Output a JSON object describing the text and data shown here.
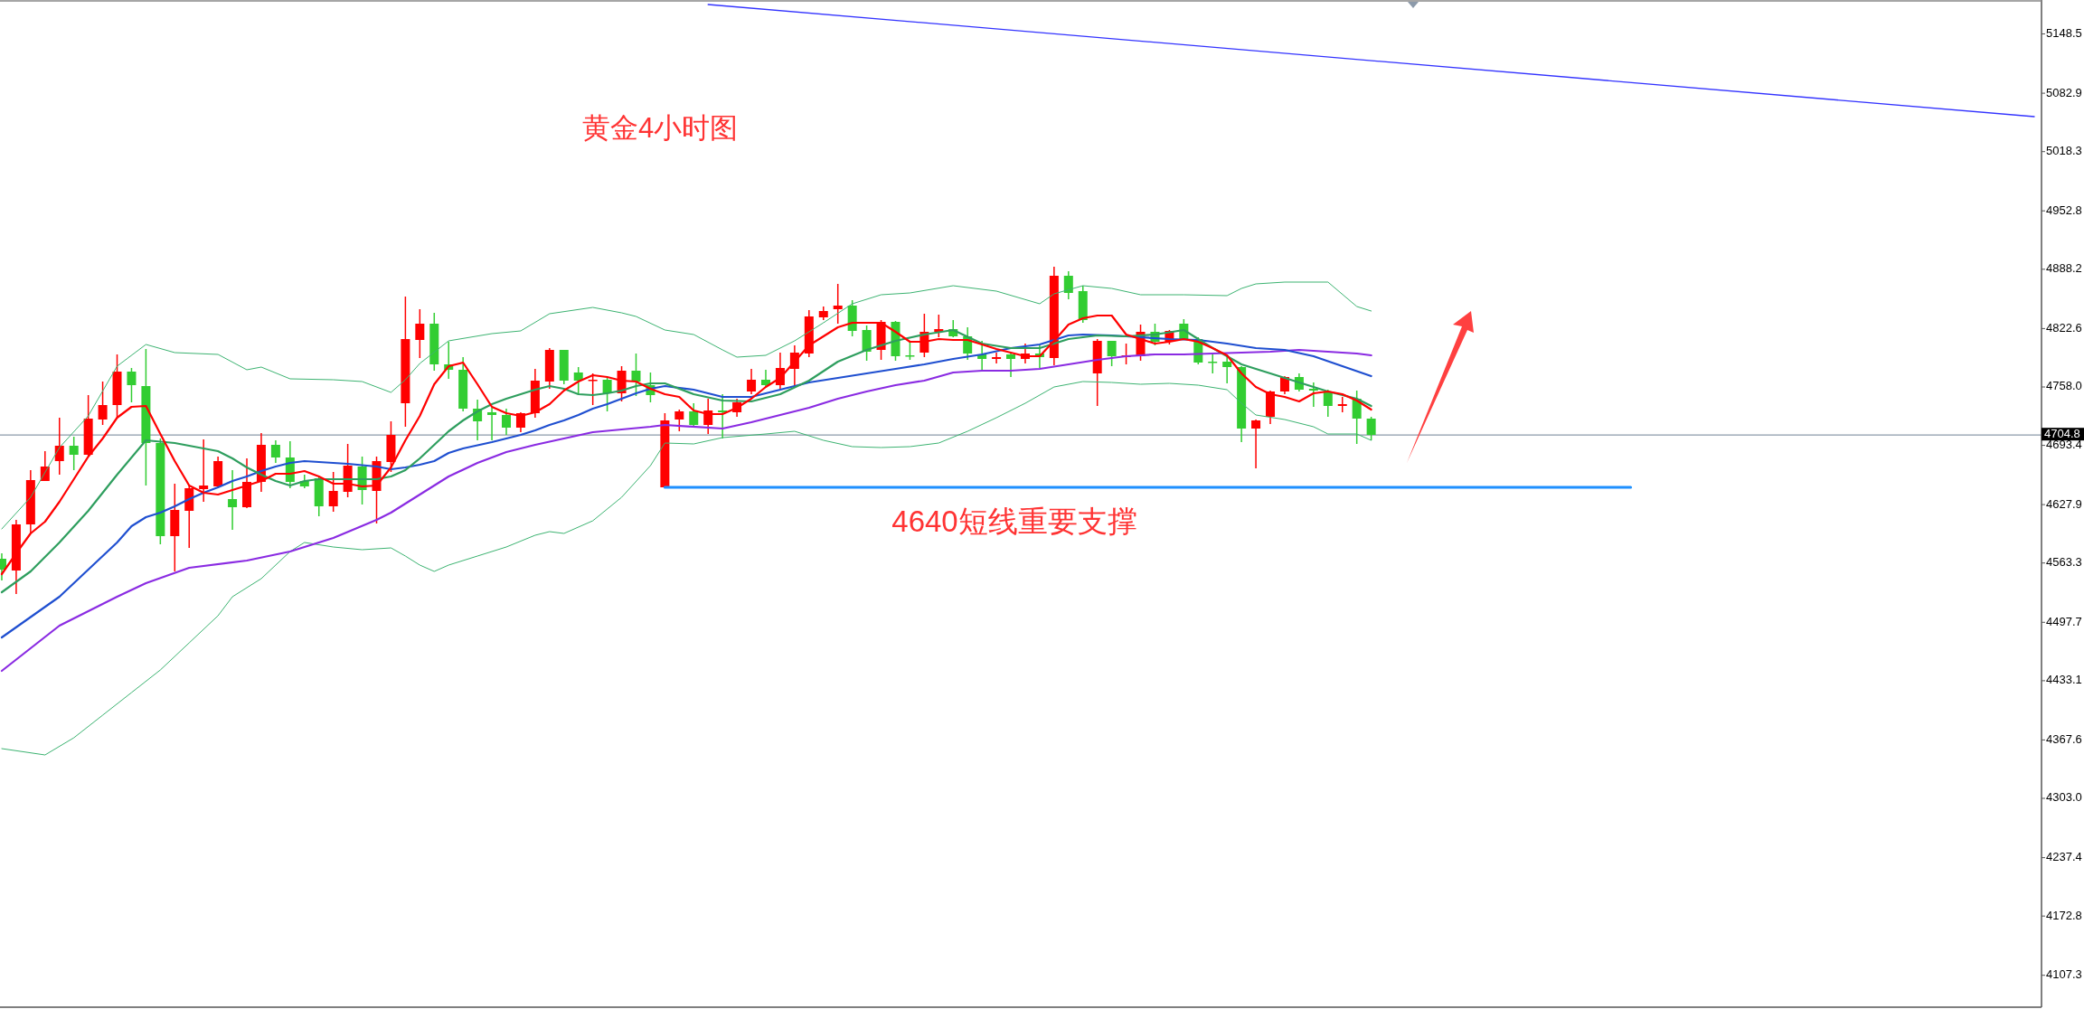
{
  "chart_data": {
    "type": "candlestick",
    "title": "黄金4小时图",
    "annotations": [
      "4640短线重要支撑"
    ],
    "categories": [
      null,
      null,
      null,
      null,
      null,
      null,
      null,
      null,
      null,
      null,
      null,
      null,
      null,
      null,
      null,
      null,
      null,
      null,
      null,
      null,
      null,
      null,
      null,
      null,
      null,
      null,
      null,
      null,
      null,
      null,
      null,
      null,
      null,
      null,
      null,
      null,
      null,
      null,
      null,
      null,
      null,
      null,
      null,
      null,
      null,
      null,
      null,
      null,
      null,
      null,
      null,
      null,
      null,
      null,
      null,
      null,
      null,
      null,
      null,
      null,
      null,
      null,
      null,
      null,
      null,
      null,
      null,
      null,
      null,
      null,
      null,
      null,
      null,
      null,
      null,
      null,
      null,
      null,
      null,
      null,
      null,
      null,
      null,
      null,
      null,
      null,
      null,
      null,
      null,
      null,
      null,
      null,
      null,
      null,
      null,
      null,
      null,
      null,
      null,
      null,
      null,
      null,
      null,
      null,
      null,
      null,
      null,
      null,
      null,
      null,
      null,
      null,
      null,
      null,
      null,
      null,
      null,
      null,
      null,
      null,
      null,
      null,
      null,
      null,
      null,
      null,
      null,
      null,
      null,
      null,
      null,
      null,
      null,
      null,
      null,
      null,
      null,
      null,
      null,
      null,
      null,
      null
    ],
    "ohlc": [
      [
        4568,
        4574,
        4544,
        4556
      ],
      [
        4555,
        4611,
        4529,
        4606
      ],
      [
        4606,
        4666,
        4596,
        4655
      ],
      [
        4654,
        4687,
        4654,
        4670
      ],
      [
        4676,
        4724,
        4661,
        4693
      ],
      [
        4693,
        4703,
        4666,
        4683
      ],
      [
        4683,
        4749,
        4682,
        4723
      ],
      [
        4722,
        4764,
        4716,
        4738
      ],
      [
        4738,
        4794,
        4724,
        4775
      ],
      [
        4775,
        4779,
        4741,
        4760
      ],
      [
        4759,
        4800,
        4649,
        4696
      ],
      [
        4696,
        4701,
        4584,
        4593
      ],
      [
        4593,
        4651,
        4554,
        4622
      ],
      [
        4621,
        4650,
        4580,
        4646
      ],
      [
        4645,
        4700,
        4631,
        4649
      ],
      [
        4648,
        4681,
        4646,
        4676
      ],
      [
        4634,
        4666,
        4600,
        4625
      ],
      [
        4625,
        4679,
        4624,
        4653
      ],
      [
        4653,
        4707,
        4642,
        4694
      ],
      [
        4694,
        4699,
        4674,
        4680
      ],
      [
        4680,
        4698,
        4646,
        4653
      ],
      [
        4654,
        4661,
        4646,
        4648
      ],
      [
        4657,
        4659,
        4615,
        4626
      ],
      [
        4626,
        4664,
        4620,
        4643
      ],
      [
        4642,
        4695,
        4636,
        4671
      ],
      [
        4670,
        4681,
        4628,
        4644
      ],
      [
        4643,
        4681,
        4607,
        4676
      ],
      [
        4675,
        4720,
        4664,
        4705
      ],
      [
        4740,
        4858,
        4714,
        4811
      ],
      [
        4810,
        4844,
        4790,
        4828
      ],
      [
        4828,
        4840,
        4776,
        4783
      ],
      [
        4783,
        4808,
        4767,
        4777
      ],
      [
        4777,
        4791,
        4731,
        4734
      ],
      [
        4734,
        4744,
        4699,
        4720
      ],
      [
        4730,
        4735,
        4699,
        4727
      ],
      [
        4727,
        4734,
        4705,
        4713
      ],
      [
        4713,
        4730,
        4708,
        4729
      ],
      [
        4729,
        4778,
        4724,
        4765
      ],
      [
        4764,
        4801,
        4756,
        4799
      ],
      [
        4799,
        4799,
        4761,
        4765
      ],
      [
        4774,
        4780,
        4749,
        4765
      ],
      [
        4765,
        4773,
        4738,
        4766
      ],
      [
        4766,
        4768,
        4731,
        4751
      ],
      [
        4751,
        4781,
        4742,
        4776
      ],
      [
        4776,
        4795,
        4748,
        4764
      ],
      [
        4760,
        4774,
        4741,
        4749
      ],
      [
        4647,
        4729,
        4647,
        4721
      ],
      [
        4722,
        4733,
        4709,
        4731
      ],
      [
        4731,
        4740,
        4714,
        4716
      ],
      [
        4716,
        4745,
        4706,
        4732
      ],
      [
        4732,
        4750,
        4701,
        4730
      ],
      [
        4730,
        4745,
        4725,
        4741
      ],
      [
        4753,
        4778,
        4750,
        4766
      ],
      [
        4766,
        4777,
        4758,
        4760
      ],
      [
        4760,
        4796,
        4756,
        4779
      ],
      [
        4778,
        4804,
        4758,
        4796
      ],
      [
        4795,
        4843,
        4791,
        4836
      ],
      [
        4835,
        4847,
        4832,
        4842
      ],
      [
        4844,
        4872,
        4828,
        4848
      ],
      [
        4848,
        4854,
        4814,
        4820
      ],
      [
        4821,
        4826,
        4787,
        4797
      ],
      [
        4799,
        4832,
        4788,
        4830
      ],
      [
        4830,
        4831,
        4787,
        4792
      ],
      [
        4793,
        4808,
        4788,
        4792
      ],
      [
        4796,
        4839,
        4791,
        4819
      ],
      [
        4819,
        4838,
        4813,
        4822
      ],
      [
        4822,
        4832,
        4813,
        4814
      ],
      [
        4814,
        4824,
        4788,
        4795
      ],
      [
        4794,
        4809,
        4776,
        4789
      ],
      [
        4789,
        4796,
        4784,
        4791
      ],
      [
        4794,
        4796,
        4769,
        4789
      ],
      [
        4789,
        4806,
        4784,
        4795
      ],
      [
        4795,
        4804,
        4779,
        4791
      ],
      [
        4790,
        4891,
        4782,
        4881
      ],
      [
        4881,
        4886,
        4855,
        4862
      ],
      [
        4864,
        4870,
        4829,
        4832
      ],
      [
        4773,
        4811,
        4737,
        4809
      ],
      [
        4809,
        4809,
        4781,
        4792
      ],
      [
        4791,
        4806,
        4783,
        4793
      ],
      [
        4792,
        4827,
        4787,
        4819
      ],
      [
        4819,
        4828,
        4804,
        4808
      ],
      [
        4808,
        4821,
        4805,
        4820
      ],
      [
        4828,
        4833,
        4811,
        4811
      ],
      [
        4811,
        4813,
        4783,
        4785
      ],
      [
        4786,
        4794,
        4773,
        4785
      ],
      [
        4786,
        4794,
        4762,
        4780
      ],
      [
        4780,
        4781,
        4697,
        4712
      ],
      [
        4712,
        4722,
        4668,
        4721
      ],
      [
        4725,
        4754,
        4717,
        4753
      ],
      [
        4753,
        4770,
        4750,
        4769
      ],
      [
        4769,
        4773,
        4753,
        4755
      ],
      [
        4756,
        4763,
        4736,
        4754
      ],
      [
        4753,
        4755,
        4725,
        4737
      ],
      [
        4737,
        4747,
        4730,
        4739
      ],
      [
        4745,
        4754,
        4695,
        4723
      ],
      [
        4723,
        4725,
        4699,
        4705
      ],
      null,
      null,
      null,
      null,
      null,
      null,
      null,
      null,
      null,
      null,
      null,
      null,
      null,
      null,
      null,
      null,
      null,
      null,
      null,
      null,
      null,
      null,
      null,
      null,
      null,
      null,
      null,
      null,
      null,
      null,
      null,
      null,
      null,
      null,
      null,
      null,
      null,
      null,
      null,
      null,
      null,
      null,
      null,
      null,
      null,
      null
    ],
    "colors": [
      "#32cd32",
      "#ff0000",
      "#ff0000",
      "#ff0000",
      "#ff0000",
      "#32cd32",
      "#ff0000",
      "#ff0000",
      "#ff0000",
      "#32cd32",
      "#32cd32",
      "#32cd32",
      "#ff0000",
      "#ff0000",
      "#ff0000",
      "#ff0000",
      "#32cd32",
      "#ff0000",
      "#ff0000",
      "#32cd32",
      "#32cd32",
      "#32cd32",
      "#32cd32",
      "#ff0000",
      "#ff0000",
      "#32cd32",
      "#ff0000",
      "#ff0000",
      "#ff0000",
      "#ff0000",
      "#32cd32",
      "#32cd32",
      "#32cd32",
      "#32cd32",
      "#32cd32",
      "#32cd32",
      "#ff0000",
      "#ff0000",
      "#ff0000",
      "#32cd32",
      "#32cd32",
      "#ff0000",
      "#32cd32",
      "#ff0000",
      "#32cd32",
      "#32cd32",
      "#ff0000",
      "#ff0000",
      "#32cd32",
      "#ff0000",
      "#32cd32",
      "#ff0000",
      "#ff0000",
      "#32cd32",
      "#ff0000",
      "#ff0000",
      "#ff0000",
      "#ff0000",
      "#ff0000",
      "#32cd32",
      "#32cd32",
      "#ff0000",
      "#32cd32",
      "#32cd32",
      "#ff0000",
      "#ff0000",
      "#32cd32",
      "#32cd32",
      "#32cd32",
      "#ff0000",
      "#32cd32",
      "#ff0000",
      "#32cd32",
      "#ff0000",
      "#32cd32",
      "#32cd32",
      "#ff0000",
      "#32cd32",
      "#ff0000",
      "#ff0000",
      "#32cd32",
      "#ff0000",
      "#32cd32",
      "#32cd32",
      "#32cd32",
      "#32cd32",
      "#32cd32",
      "#ff0000",
      "#ff0000",
      "#ff0000",
      "#32cd32",
      "#32cd32",
      "#32cd32",
      "#ff0000",
      "#32cd32",
      "#32cd32",
      null,
      null,
      null,
      null,
      null,
      null,
      null,
      null,
      null,
      null,
      null,
      null,
      null,
      null,
      null,
      null,
      null,
      null,
      null,
      null,
      null,
      null,
      null,
      null,
      null,
      null,
      null,
      null,
      null,
      null,
      null,
      null,
      null,
      null,
      null,
      null,
      null,
      null,
      null,
      null,
      null,
      null,
      null,
      null,
      null,
      null
    ],
    "series": [
      {
        "type": "line",
        "color": "#3cb371",
        "values": [
          4601,
          null,
          4636,
          null,
          4691,
          null,
          4726,
          null,
          4781,
          null,
          4805,
          null,
          4796,
          null,
          null,
          4794,
          null,
          4777,
          4780,
          null,
          4767,
          null,
          null,
          4766,
          null,
          4764,
          null,
          4752,
          4766,
          4784,
          null,
          4809,
          null,
          null,
          4817,
          null,
          4820,
          null,
          4839,
          null,
          null,
          4846,
          null,
          4840,
          4836,
          null,
          4821,
          null,
          4816,
          null,
          4799,
          4791,
          null,
          4793,
          null,
          4809,
          null,
          4829,
          null,
          4850,
          null,
          4860,
          null,
          4862,
          null,
          null,
          4870,
          null,
          null,
          4864,
          null,
          null,
          4850,
          4861,
          null,
          4870,
          null,
          4867,
          null,
          4860,
          null,
          null,
          4860,
          null,
          null,
          4859,
          4867,
          4872,
          null,
          4874,
          null,
          null,
          4874,
          null,
          4847,
          4842,
          null,
          null,
          null,
          null,
          null,
          null,
          null,
          null,
          null,
          null,
          null,
          null,
          null,
          null,
          null,
          null,
          null,
          null,
          null,
          null,
          null,
          null,
          null,
          null,
          null,
          null,
          null,
          null,
          null,
          null,
          null,
          null,
          null,
          null,
          null,
          null,
          null,
          null,
          null,
          null,
          null,
          null,
          null,
          null,
          null,
          null
        ]
      },
      {
        "type": "line",
        "color": "#3cb371",
        "values": [
          4358,
          null,
          null,
          4351,
          null,
          4370,
          null,
          4395,
          null,
          4420,
          null,
          4445,
          null,
          4475,
          null,
          4505,
          4526,
          null,
          4546,
          null,
          4576,
          4586,
          null,
          4581,
          null,
          4578,
          null,
          4580,
          4571,
          4561,
          4554,
          4561,
          null,
          4571,
          null,
          4581,
          null,
          4594,
          4598,
          4596,
          null,
          4610,
          null,
          4636,
          null,
          4671,
          4696,
          null,
          4695,
          null,
          4702,
          null,
          null,
          4706,
          null,
          4709,
          null,
          4699,
          null,
          4692,
          null,
          4691,
          null,
          4692,
          null,
          4696,
          null,
          4709,
          null,
          4724,
          null,
          4740,
          null,
          4758,
          null,
          4764,
          null,
          4763,
          null,
          4761,
          null,
          4762,
          null,
          4760,
          null,
          4755,
          4740,
          4727,
          null,
          4722,
          null,
          4714,
          4706,
          null,
          4706,
          4699,
          null,
          null,
          null,
          null,
          null,
          null,
          null,
          null,
          null,
          null,
          null,
          null,
          null,
          null,
          null,
          null,
          null,
          null,
          null,
          null,
          null,
          null,
          null,
          null,
          null,
          null,
          null,
          null,
          null,
          null,
          null,
          null,
          null,
          null,
          null,
          null,
          null,
          null,
          null,
          null,
          null,
          null,
          null,
          null,
          null,
          null
        ]
      },
      {
        "type": "line",
        "color": "#8a2be2",
        "values": [
          4444,
          null,
          null,
          null,
          4494,
          null,
          null,
          null,
          4526,
          null,
          4541,
          null,
          null,
          4558,
          null,
          null,
          null,
          4566,
          null,
          null,
          4576,
          null,
          null,
          4591,
          null,
          null,
          4611,
          4619,
          null,
          4639,
          null,
          4659,
          null,
          4674,
          null,
          4686,
          null,
          4694,
          null,
          4701,
          null,
          4708,
          null,
          4711,
          null,
          4714,
          4716,
          null,
          null,
          null,
          4712,
          null,
          4719,
          null,
          4727,
          null,
          4735,
          null,
          4745,
          null,
          4753,
          null,
          4760,
          null,
          4765,
          null,
          4774,
          null,
          4776,
          null,
          4776,
          null,
          4778,
          null,
          4783,
          null,
          4788,
          null,
          4792,
          null,
          4794,
          null,
          4794,
          null,
          4795,
          null,
          4796,
          null,
          4797,
          null,
          4799,
          null,
          4797,
          null,
          4795,
          4793,
          null,
          null,
          null,
          null,
          null,
          null,
          null,
          null,
          null,
          null,
          null,
          null,
          null,
          null,
          null,
          null,
          null,
          null,
          null,
          null,
          null,
          null,
          null,
          null,
          null,
          null,
          null,
          null,
          null,
          null,
          null,
          null,
          null,
          null,
          null,
          null,
          null,
          null,
          null,
          null,
          null,
          null,
          null,
          null,
          null,
          null
        ]
      },
      {
        "type": "line",
        "color": "#1f4fd0",
        "values": [
          4481,
          null,
          null,
          null,
          4526,
          null,
          4556,
          null,
          4586,
          4604,
          4614,
          4619,
          4626,
          4634,
          4641,
          4647,
          4654,
          4659,
          4665,
          4670,
          4674,
          4676,
          4675,
          null,
          4673,
          null,
          4670,
          4667,
          4669,
          4672,
          4676,
          4685,
          4690,
          null,
          4697,
          null,
          4705,
          4710,
          4716,
          4721,
          4727,
          4734,
          4739,
          4745,
          4751,
          4756,
          4759,
          null,
          4755,
          null,
          4747,
          null,
          4747,
          null,
          4755,
          null,
          4763,
          null,
          4768,
          null,
          4773,
          null,
          4778,
          null,
          4783,
          null,
          4789,
          null,
          4794,
          null,
          4801,
          null,
          4805,
          4810,
          4815,
          4816,
          null,
          4815,
          null,
          4813,
          null,
          4811,
          null,
          4810,
          null,
          4806,
          null,
          4801,
          null,
          4799,
          null,
          4792,
          null,
          4781,
          null,
          4770,
          null,
          null,
          null,
          null,
          null,
          null,
          null,
          null,
          null,
          null,
          null,
          null,
          null,
          null,
          null,
          null,
          null,
          null,
          null,
          null,
          null,
          null,
          null,
          null,
          null,
          null,
          null,
          null,
          null,
          null,
          null,
          null,
          null,
          null,
          null,
          null,
          null,
          null,
          null,
          null,
          null,
          null,
          null,
          null,
          null,
          null
        ]
      },
      {
        "type": "line",
        "color": "#2e9e5e",
        "values": [
          4531,
          null,
          4554,
          null,
          4586,
          null,
          4621,
          null,
          4661,
          null,
          4699,
          null,
          4696,
          null,
          4690,
          4687,
          4679,
          4669,
          4661,
          4654,
          4649,
          4654,
          4656,
          null,
          4656,
          null,
          4656,
          4659,
          4666,
          4679,
          4694,
          4709,
          4721,
          4731,
          4739,
          4745,
          4750,
          4755,
          4759,
          4756,
          4750,
          4749,
          4751,
          4754,
          4759,
          4762,
          4762,
          null,
          4750,
          null,
          4743,
          null,
          4742,
          null,
          4750,
          null,
          4765,
          null,
          4786,
          null,
          4799,
          null,
          4809,
          null,
          4816,
          null,
          4821,
          null,
          4806,
          null,
          4801,
          null,
          4801,
          null,
          4811,
          null,
          4815,
          null,
          4814,
          null,
          4816,
          null,
          4821,
          null,
          4801,
          null,
          4783,
          null,
          4773,
          null,
          4763,
          null,
          4753,
          null,
          4745,
          4737,
          null,
          null,
          null,
          null,
          null,
          null,
          null,
          null,
          null,
          null,
          null,
          null,
          null,
          null,
          null,
          null,
          null,
          null,
          null,
          null,
          null,
          null,
          null,
          null,
          null,
          null,
          null,
          null,
          null,
          null,
          null,
          null,
          null,
          null,
          null,
          null,
          null,
          null,
          null,
          null,
          null,
          null,
          null,
          null,
          null,
          null
        ]
      },
      {
        "type": "line",
        "color": "#ff0000",
        "values": [
          4551,
          4574,
          4596,
          4609,
          4631,
          4656,
          4681,
          4701,
          4724,
          4736,
          4737,
          4706,
          4676,
          4649,
          4641,
          4639,
          4644,
          4649,
          4654,
          4662,
          4662,
          4665,
          4659,
          4651,
          4651,
          4648,
          4649,
          4669,
          4699,
          4726,
          4761,
          4781,
          4785,
          4761,
          4736,
          4729,
          4726,
          4730,
          4739,
          4754,
          4764,
          4771,
          4769,
          4765,
          4764,
          4756,
          4750,
          4747,
          4732,
          4728,
          4728,
          4735,
          4745,
          4758,
          4768,
          4786,
          4804,
          4814,
          4824,
          4829,
          4829,
          4829,
          4819,
          4808,
          4808,
          4811,
          4810,
          4810,
          4805,
          4800,
          4796,
          4792,
          4792,
          4809,
          4827,
          4834,
          4837,
          4837,
          4816,
          4811,
          4806,
          4808,
          4811,
          4808,
          4801,
          4793,
          4773,
          4758,
          4750,
          4747,
          4742,
          4751,
          4753,
          4750,
          4743,
          4733,
          null,
          null,
          null,
          null,
          null,
          null,
          null,
          null,
          null,
          null,
          null,
          null,
          null,
          null,
          null,
          null,
          null,
          null,
          null,
          null,
          null,
          null,
          null,
          null,
          null,
          null,
          null,
          null,
          null,
          null,
          null,
          null,
          null,
          null,
          null,
          null,
          null,
          null,
          null,
          null,
          null,
          null,
          null,
          null,
          null,
          null
        ]
      },
      {
        "type": "line",
        "color": "#1e90ff",
        "values": [
          null,
          null,
          null,
          null,
          null,
          null,
          null,
          null,
          null,
          null,
          null,
          null,
          null,
          null,
          null,
          null,
          null,
          null,
          null,
          null,
          null,
          null,
          null,
          null,
          null,
          null,
          null,
          null,
          null,
          null,
          null,
          null,
          null,
          null,
          null,
          null,
          null,
          null,
          null,
          null,
          null,
          null,
          null,
          null,
          null,
          null,
          4647,
          null,
          null,
          null,
          null,
          null,
          null,
          null,
          null,
          null,
          null,
          null,
          null,
          null,
          null,
          null,
          null,
          null,
          null,
          null,
          null,
          null,
          null,
          null,
          null,
          null,
          null,
          null,
          null,
          null,
          null,
          null,
          null,
          null,
          null,
          null,
          null,
          null,
          null,
          null,
          null,
          null,
          null,
          null,
          null,
          null,
          null,
          null,
          null,
          null,
          null,
          null,
          null,
          null,
          null,
          null,
          null,
          null,
          null,
          null,
          null,
          null,
          null,
          null,
          null,
          null,
          null,
          4647,
          null,
          null,
          null,
          null,
          null,
          null,
          null,
          null,
          null,
          null,
          null,
          null,
          null,
          null,
          null,
          null,
          null,
          null,
          null,
          null,
          null,
          null,
          null,
          null,
          null,
          null,
          null,
          null
        ]
      },
      {
        "type": "line",
        "color": "#3333ff",
        "values": [
          null,
          null,
          null,
          null,
          null,
          null,
          null,
          null,
          null,
          null,
          null,
          null,
          null,
          null,
          null,
          null,
          null,
          null,
          null,
          null,
          null,
          null,
          null,
          null,
          null,
          null,
          null,
          null,
          null,
          null,
          null,
          null,
          null,
          null,
          null,
          null,
          null,
          null,
          null,
          null,
          null,
          null,
          null,
          null,
          null,
          null,
          null,
          null,
          null,
          5181,
          null,
          null,
          null,
          null,
          null,
          null,
          null,
          null,
          null,
          null,
          null,
          null,
          null,
          null,
          null,
          null,
          null,
          null,
          null,
          null,
          null,
          null,
          null,
          null,
          null,
          null,
          null,
          null,
          null,
          null,
          null,
          null,
          null,
          null,
          null,
          null,
          null,
          null,
          null,
          null,
          null,
          null,
          null,
          null,
          null,
          null,
          null,
          null,
          null,
          null,
          null,
          null,
          null,
          null,
          null,
          null,
          null,
          null,
          null,
          null,
          null,
          null,
          null,
          null,
          null,
          null,
          null,
          null,
          null,
          null,
          null,
          null,
          null,
          null,
          null,
          null,
          null,
          null,
          null,
          null,
          null,
          null,
          null,
          null,
          null,
          null,
          null,
          null,
          null,
          null,
          null,
          5057
        ]
      }
    ],
    "ref_lines": [
      {
        "axis": "y",
        "value": 4704.8,
        "label": "4704.8",
        "color": "#8c9aaa"
      }
    ],
    "ylim": [
      4072,
      5186
    ],
    "yticks": [
      5148.5,
      5082.9,
      5018.3,
      4952.8,
      4888.2,
      4822.6,
      {
        "value": 4758,
        "label": "4758.0"
      },
      4693.4,
      4627.9,
      4563.3,
      4497.7,
      4433.1,
      4367.6,
      {
        "value": 4303,
        "label": "4303.0"
      },
      4237.4,
      4172.8,
      4107.3
    ]
  }
}
